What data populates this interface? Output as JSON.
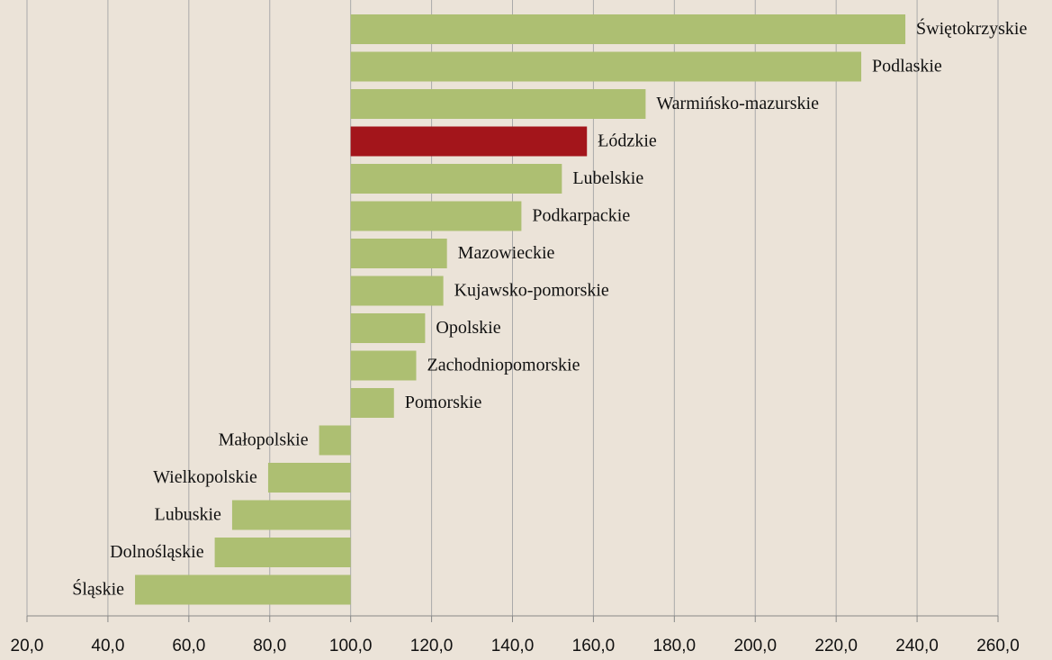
{
  "chart_data": {
    "type": "hbar",
    "categories": [
      "Świętokrzyskie",
      "Podlaskie",
      "Warmińsko-mazurskie",
      "Łódzkie",
      "Lubelskie",
      "Podkarpackie",
      "Mazowieckie",
      "Kujawsko-pomorskie",
      "Opolskie",
      "Zachodniopomorskie",
      "Pomorskie",
      "Małopolskie",
      "Wielkopolskie",
      "Lubuskie",
      "Dolnośląskie",
      "Śląskie"
    ],
    "values": [
      237.1,
      226.2,
      172.9,
      158.4,
      152.2,
      142.2,
      123.8,
      122.9,
      118.4,
      116.2,
      110.7,
      92.2,
      79.6,
      70.7,
      66.4,
      46.7
    ],
    "colors": [
      "#adbf72",
      "#adbf72",
      "#adbf72",
      "#a3151b",
      "#adbf72",
      "#adbf72",
      "#adbf72",
      "#adbf72",
      "#adbf72",
      "#adbf72",
      "#adbf72",
      "#adbf72",
      "#adbf72",
      "#adbf72",
      "#adbf72",
      "#adbf72"
    ],
    "baseline": 100,
    "xlim": [
      20,
      260
    ],
    "xticks": [
      {
        "value": 20,
        "label": "20,0"
      },
      {
        "value": 40,
        "label": "40,0"
      },
      {
        "value": 60,
        "label": "60,0"
      },
      {
        "value": 80,
        "label": "80,0"
      },
      {
        "value": 100,
        "label": "100,0"
      },
      {
        "value": 120,
        "label": "120,0"
      },
      {
        "value": 140,
        "label": "140,0"
      },
      {
        "value": 160,
        "label": "160,0"
      },
      {
        "value": 180,
        "label": "180,0"
      },
      {
        "value": 200,
        "label": "200,0"
      },
      {
        "value": 220,
        "label": "220,0"
      },
      {
        "value": 240,
        "label": "240,0"
      },
      {
        "value": 260,
        "label": "260,0"
      }
    ],
    "grid": true
  }
}
